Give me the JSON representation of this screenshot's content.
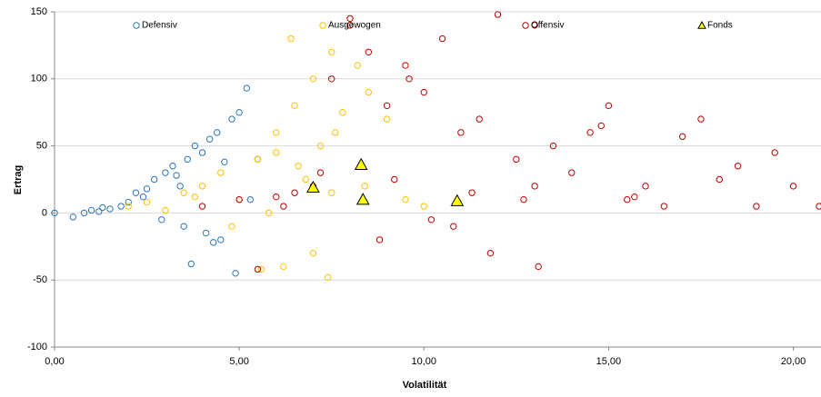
{
  "chart_data": {
    "type": "scatter",
    "xlabel": "Volatilität",
    "ylabel": "Ertrag",
    "xlim": [
      0,
      20.75
    ],
    "ylim": [
      -100,
      150
    ],
    "xticks": [
      {
        "value": 0,
        "label": "0,00"
      },
      {
        "value": 5,
        "label": "5,00"
      },
      {
        "value": 10,
        "label": "10,00"
      },
      {
        "value": 15,
        "label": "15,00"
      },
      {
        "value": 20,
        "label": "20,00"
      }
    ],
    "yticks": [
      -100,
      -50,
      0,
      50,
      100,
      150
    ],
    "grid": true,
    "legend": "top",
    "series": [
      {
        "name": "Defensiv",
        "color": "#2e75b6",
        "marker": "circle",
        "x": [
          0.5,
          0.8,
          1.0,
          1.3,
          1.5,
          1.8,
          2.0,
          2.2,
          2.5,
          2.7,
          3.0,
          3.2,
          3.4,
          3.6,
          3.8,
          4.0,
          4.2,
          4.4,
          4.6,
          4.8,
          5.0,
          5.2,
          5.5,
          2.9,
          3.5,
          4.1,
          4.5,
          1.2,
          2.4,
          3.3,
          4.9,
          5.3,
          0.0,
          3.7,
          4.3
        ],
        "values": [
          -3,
          0,
          2,
          4,
          3,
          5,
          8,
          15,
          18,
          25,
          30,
          35,
          20,
          40,
          50,
          45,
          55,
          60,
          38,
          70,
          75,
          93,
          40,
          -5,
          -10,
          -15,
          -20,
          1,
          12,
          28,
          -45,
          10,
          0,
          -38,
          -22
        ]
      },
      {
        "name": "Ausgewogen",
        "color": "#ffc000",
        "marker": "circle",
        "x": [
          2.0,
          2.5,
          3.0,
          3.5,
          4.0,
          4.5,
          5.0,
          5.5,
          6.0,
          6.5,
          7.0,
          7.5,
          8.0,
          8.5,
          9.0,
          6.2,
          6.8,
          7.2,
          7.8,
          8.2,
          5.8,
          6.6,
          7.4,
          3.8,
          4.8,
          5.6,
          6.4,
          7.6,
          8.4,
          9.5,
          10.0,
          6.0,
          7.0,
          7.5
        ],
        "values": [
          5,
          8,
          2,
          15,
          20,
          30,
          10,
          40,
          60,
          80,
          100,
          120,
          140,
          90,
          70,
          -40,
          25,
          50,
          75,
          110,
          0,
          35,
          -48,
          12,
          -10,
          -42,
          130,
          60,
          20,
          10,
          5,
          45,
          -30,
          15
        ]
      },
      {
        "name": "Offensiv",
        "color": "#c00000",
        "marker": "circle",
        "x": [
          4.0,
          5.0,
          5.5,
          6.0,
          6.5,
          7.0,
          7.5,
          8.0,
          8.5,
          9.0,
          9.5,
          10.0,
          10.5,
          11.0,
          11.5,
          12.0,
          12.5,
          13.0,
          13.5,
          14.0,
          14.5,
          15.0,
          15.5,
          16.0,
          16.5,
          17.0,
          17.5,
          18.0,
          18.5,
          19.0,
          19.5,
          20.0,
          20.7,
          7.2,
          8.8,
          9.2,
          10.2,
          11.3,
          12.7,
          13.1,
          14.8,
          15.7,
          6.2,
          8.0,
          9.6,
          11.8,
          13.0,
          10.8
        ],
        "values": [
          5,
          10,
          -42,
          12,
          15,
          20,
          100,
          140,
          120,
          80,
          110,
          90,
          130,
          60,
          70,
          148,
          40,
          20,
          50,
          30,
          60,
          80,
          10,
          20,
          5,
          57,
          70,
          25,
          35,
          5,
          45,
          20,
          5,
          30,
          -20,
          25,
          -5,
          15,
          10,
          -40,
          65,
          12,
          5,
          145,
          100,
          -30,
          140,
          -10
        ]
      },
      {
        "name": "Fonds",
        "color": "#ffff00",
        "marker": "triangle",
        "x": [
          7.0,
          8.3,
          8.35,
          10.9
        ],
        "values": [
          19,
          36,
          10,
          9
        ]
      }
    ]
  }
}
